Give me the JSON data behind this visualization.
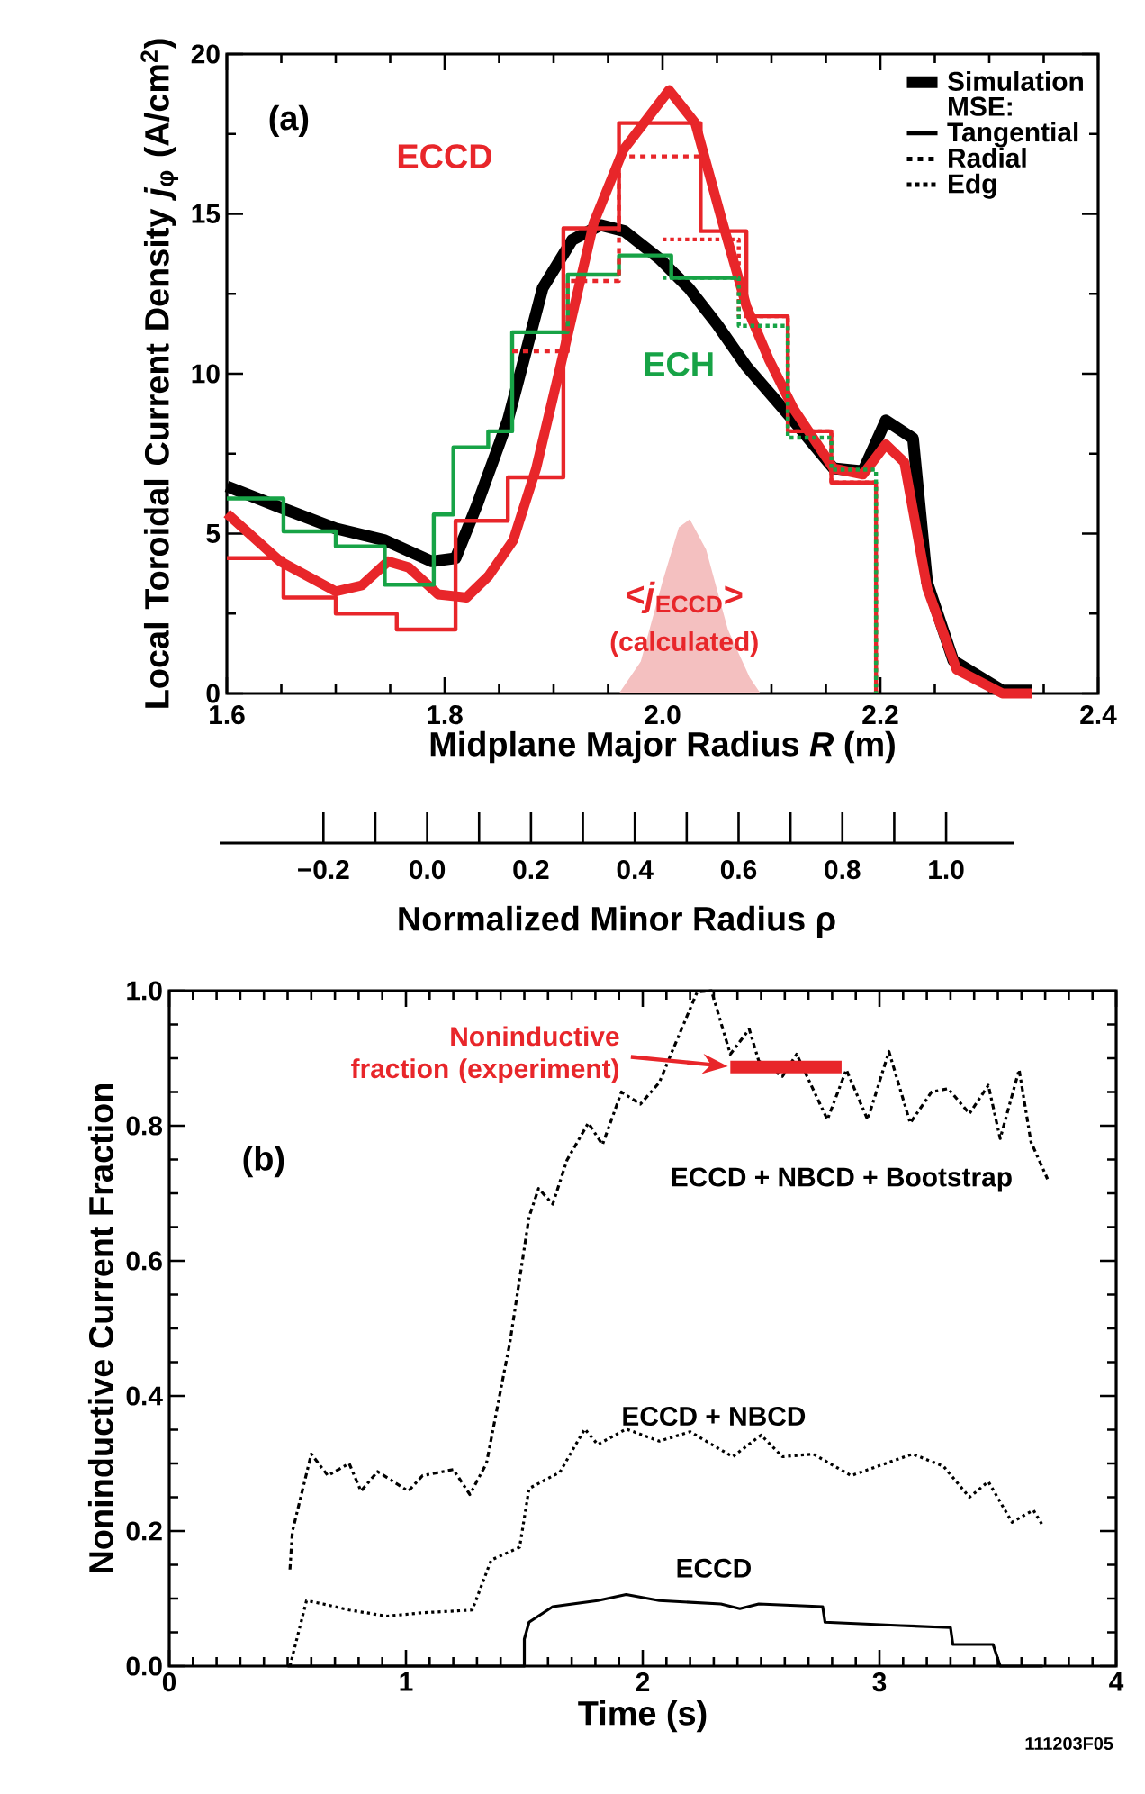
{
  "chart_data": [
    {
      "type": "line",
      "xlabel": "Midplane Major Radius *R* (m)",
      "ylabel": "Local Toroidal Current Density *j*$_{φ}$ (A/cm$^{2}$)",
      "x2label": "Normalized Minor Radius ρ",
      "xlim": [
        1.6,
        2.4
      ],
      "xticks": [
        1.6,
        1.8,
        {
          "value": 2.0,
          "label": "2.0"
        },
        2.2,
        2.4
      ],
      "ylim": [
        0,
        20
      ],
      "yticks": [
        0,
        5,
        10,
        15,
        20
      ],
      "x2lim": [
        -0.4,
        1.13
      ],
      "x2ticks": [
        {
          "value": -0.2,
          "label": "−0.2"
        },
        {
          "value": 0,
          "label": "0.0"
        },
        0.2,
        0.4,
        0.6,
        0.8,
        {
          "value": 1,
          "label": "1.0"
        }
      ],
      "legend": "top right",
      "annotations": [
        "(a)",
        "(calculated)",
        "MSE:",
        "Tangential",
        "Radial",
        "Edg"
      ],
      "series": [
        {
          "name": "Simulation",
          "color": "#000000",
          "line_style": "solid",
          "x": [
            1.6,
            1.649,
            1.7,
            1.745,
            1.788,
            1.81,
            1.83,
            1.858,
            1.89,
            1.917,
            1.943,
            1.965,
            1.997,
            2.024,
            2.05,
            2.077,
            2.12,
            2.157,
            2.184,
            2.205,
            2.23,
            2.243,
            2.267,
            2.312,
            2.339
          ],
          "values": [
            6.48,
            5.82,
            5.16,
            4.79,
            4.13,
            4.23,
            5.92,
            8.54,
            12.68,
            14.18,
            14.65,
            14.46,
            13.6,
            12.68,
            11.55,
            10.23,
            8.54,
            7.04,
            6.95,
            8.54,
            7.98,
            3.47,
            1.03,
            0.09,
            0.09
          ]
        },
        {
          "name": "ECCD",
          "color": "#e8262a",
          "line_style": "solid",
          "x": [
            1.6,
            1.649,
            1.7,
            1.724,
            1.748,
            1.767,
            1.794,
            1.82,
            1.84,
            1.863,
            1.884,
            1.905,
            1.937,
            1.964,
            2.006,
            2.03,
            2.055,
            2.077,
            2.098,
            2.12,
            2.157,
            2.184,
            2.205,
            2.222,
            2.243,
            2.27,
            2.312,
            2.339
          ],
          "values": [
            5.63,
            4.13,
            3.19,
            3.38,
            4.13,
            3.94,
            3.1,
            3.0,
            3.66,
            4.79,
            7.04,
            10.05,
            14.74,
            17.0,
            18.87,
            17.84,
            14.74,
            12.11,
            10.42,
            8.92,
            7.04,
            6.85,
            7.79,
            7.23,
            3.29,
            0.75,
            0,
            0
          ]
        },
        {
          "type": "step",
          "color": "#e8262a",
          "line_style": "solid",
          "x": [
            1.6,
            1.652,
            1.7,
            1.756,
            1.81,
            1.858,
            1.909,
            1.96,
            2.035,
            2.077,
            2.115,
            2.155,
            2.196
          ],
          "values": [
            4.23,
            3.0,
            2.5,
            2.0,
            5.4,
            6.76,
            14.55,
            17.84,
            14.46,
            11.8,
            8.2,
            6.6,
            0
          ]
        },
        {
          "name": "ECH",
          "type": "step",
          "color": "#17a346",
          "line_style": "solid",
          "x": [
            1.6,
            1.652,
            1.7,
            1.745,
            1.79,
            1.808,
            1.84,
            1.862,
            1.913,
            1.96,
            2.008,
            2.07
          ],
          "values": [
            6.1,
            5.07,
            4.6,
            3.4,
            5.6,
            7.7,
            8.2,
            11.3,
            13.1,
            13.7,
            13.0,
            13.0
          ]
        },
        {
          "type": "step",
          "color": "#e8262a",
          "line_style": "dashed",
          "x": [
            1.862,
            1.913,
            1.96,
            2.035
          ],
          "values": [
            10.7,
            12.9,
            16.8,
            16.8
          ]
        },
        {
          "type": "step",
          "color": "#e8262a",
          "line_style": "dotted",
          "x": [
            2.0,
            2.07,
            2.115,
            2.155,
            2.196
          ],
          "values": [
            14.2,
            11.8,
            8.2,
            6.6,
            0
          ]
        },
        {
          "type": "step",
          "color": "#17a346",
          "line_style": "dotted",
          "x": [
            2.0,
            2.07,
            2.115,
            2.155,
            2.196
          ],
          "values": [
            13.0,
            11.5,
            8.0,
            7.0,
            0
          ]
        },
        {
          "name": "<*j*$_{ECCD}$>",
          "type": "area",
          "color": "#f4c0c0",
          "x": [
            1.96,
            1.98,
            2.0,
            2.015,
            2.025,
            2.04,
            2.06,
            2.08,
            2.09
          ],
          "values": [
            0,
            1.0,
            3.5,
            5.2,
            5.45,
            4.5,
            2.0,
            0.5,
            0
          ]
        }
      ]
    },
    {
      "type": "line",
      "xlabel": "Time (s)",
      "ylabel": "Noninductive Current Fraction",
      "xlim": [
        0,
        4
      ],
      "xticks": [
        0,
        1,
        2,
        3,
        4
      ],
      "ylim": [
        0,
        1
      ],
      "yticks": [
        {
          "value": 0,
          "label": "0.0"
        },
        0.2,
        0.4,
        0.6,
        0.8,
        {
          "value": 1,
          "label": "1.0"
        }
      ],
      "annotations": [
        "(b)",
        "111203F05"
      ],
      "series": [
        {
          "name": "ECCD + NBCD + Bootstrap",
          "color": "#000000",
          "line_style": "dashdot",
          "x": [
            0.51,
            0.52,
            0.6,
            0.67,
            0.76,
            0.81,
            0.88,
            1.01,
            1.07,
            1.2,
            1.27,
            1.34,
            1.44,
            1.52,
            1.56,
            1.62,
            1.68,
            1.77,
            1.83,
            1.91,
            1.99,
            2.07,
            2.13,
            2.23,
            2.29,
            2.37,
            2.45,
            2.49,
            2.59,
            2.65,
            2.78,
            2.86,
            2.95,
            3.04,
            3.13,
            3.22,
            3.29,
            3.38,
            3.46,
            3.51,
            3.59,
            3.64,
            3.71
          ],
          "values": [
            0.143,
            0.199,
            0.314,
            0.282,
            0.3,
            0.259,
            0.288,
            0.259,
            0.282,
            0.291,
            0.254,
            0.3,
            0.481,
            0.665,
            0.707,
            0.684,
            0.749,
            0.804,
            0.772,
            0.85,
            0.832,
            0.864,
            0.915,
            0.998,
            1.0,
            0.906,
            0.943,
            0.896,
            0.873,
            0.906,
            0.809,
            0.883,
            0.809,
            0.91,
            0.804,
            0.85,
            0.855,
            0.818,
            0.86,
            0.781,
            0.883,
            0.776,
            0.721
          ]
        },
        {
          "name": "ECCD + NBCD",
          "color": "#000000",
          "line_style": "dotted",
          "x": [
            0.51,
            0.58,
            0.65,
            0.76,
            0.92,
            1.07,
            1.28,
            1.36,
            1.48,
            1.52,
            1.65,
            1.755,
            1.81,
            1.93,
            2.07,
            2.2,
            2.38,
            2.5,
            2.59,
            2.72,
            2.88,
            3.14,
            3.27,
            3.38,
            3.46,
            3.56,
            3.65,
            3.69
          ],
          "values": [
            0,
            0.097,
            0.092,
            0.083,
            0.074,
            0.079,
            0.083,
            0.157,
            0.176,
            0.263,
            0.287,
            0.351,
            0.328,
            0.351,
            0.333,
            0.347,
            0.31,
            0.342,
            0.31,
            0.314,
            0.282,
            0.314,
            0.296,
            0.25,
            0.273,
            0.213,
            0.231,
            0.208
          ]
        },
        {
          "name": "ECCD",
          "color": "#000000",
          "line_style": "solid",
          "x": [
            0.5,
            1.5,
            1.5,
            1.52,
            1.62,
            1.81,
            1.93,
            2.07,
            2.33,
            2.41,
            2.49,
            2.76,
            2.77,
            3.09,
            3.3,
            3.31,
            3.48,
            3.51,
            3.69
          ],
          "values": [
            0,
            0,
            0.04,
            0.065,
            0.088,
            0.097,
            0.106,
            0.097,
            0.092,
            0.085,
            0.092,
            0.088,
            0.065,
            0.06,
            0.057,
            0.032,
            0.032,
            0,
            0
          ]
        },
        {
          "name": "Noninductive fraction (experiment)",
          "color": "#e8262a",
          "line_style": "solid",
          "x": [
            2.37,
            2.84
          ],
          "values": [
            0.887,
            0.887
          ]
        }
      ]
    }
  ]
}
